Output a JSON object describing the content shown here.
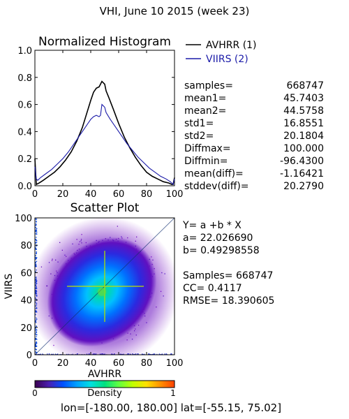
{
  "header": {
    "title": "VHI,  June 10 2015 (week 23)"
  },
  "footer": {
    "bounds": "lon=[-180.00, 180.00]  lat=[-55.15, 75.02]"
  },
  "chart_data": [
    {
      "type": "line",
      "title": "Normalized Histogram",
      "xlim": [
        0,
        100
      ],
      "ylim": [
        0,
        1
      ],
      "x_ticks": [
        "0",
        "20",
        "40",
        "60",
        "80",
        "100"
      ],
      "y_ticks": [
        "0.0",
        "0.2",
        "0.4",
        "0.6",
        "0.8",
        "1.0"
      ],
      "legend_position": "right",
      "series": [
        {
          "name": "AVHRR (1)",
          "color": "#000000",
          "points": [
            [
              0,
              0.2
            ],
            [
              1,
              0.01
            ],
            [
              3,
              0.02
            ],
            [
              6,
              0.04
            ],
            [
              10,
              0.07
            ],
            [
              14,
              0.1
            ],
            [
              18,
              0.14
            ],
            [
              22,
              0.19
            ],
            [
              26,
              0.25
            ],
            [
              30,
              0.33
            ],
            [
              34,
              0.43
            ],
            [
              37,
              0.53
            ],
            [
              40,
              0.63
            ],
            [
              42,
              0.69
            ],
            [
              44,
              0.72
            ],
            [
              46,
              0.73
            ],
            [
              48,
              0.77
            ],
            [
              50,
              0.75
            ],
            [
              51,
              0.7
            ],
            [
              53,
              0.65
            ],
            [
              56,
              0.57
            ],
            [
              60,
              0.46
            ],
            [
              64,
              0.36
            ],
            [
              68,
              0.28
            ],
            [
              72,
              0.21
            ],
            [
              76,
              0.15
            ],
            [
              80,
              0.1
            ],
            [
              84,
              0.07
            ],
            [
              88,
              0.05
            ],
            [
              92,
              0.03
            ],
            [
              96,
              0.02
            ],
            [
              98,
              0.01
            ],
            [
              99,
              0.01
            ],
            [
              100,
              0.06
            ]
          ]
        },
        {
          "name": "VIIRS (2)",
          "color": "#1a1aa8",
          "points": [
            [
              0,
              0.14
            ],
            [
              1,
              0.05
            ],
            [
              2,
              0.04
            ],
            [
              4,
              0.06
            ],
            [
              8,
              0.09
            ],
            [
              12,
              0.12
            ],
            [
              16,
              0.16
            ],
            [
              20,
              0.2
            ],
            [
              24,
              0.25
            ],
            [
              28,
              0.31
            ],
            [
              32,
              0.37
            ],
            [
              36,
              0.43
            ],
            [
              40,
              0.49
            ],
            [
              42,
              0.51
            ],
            [
              44,
              0.52
            ],
            [
              46,
              0.51
            ],
            [
              47,
              0.52
            ],
            [
              48,
              0.6
            ],
            [
              50,
              0.58
            ],
            [
              51,
              0.54
            ],
            [
              54,
              0.49
            ],
            [
              58,
              0.43
            ],
            [
              62,
              0.37
            ],
            [
              66,
              0.31
            ],
            [
              70,
              0.26
            ],
            [
              74,
              0.21
            ],
            [
              78,
              0.17
            ],
            [
              82,
              0.13
            ],
            [
              86,
              0.1
            ],
            [
              90,
              0.07
            ],
            [
              94,
              0.05
            ],
            [
              97,
              0.03
            ],
            [
              99,
              0.01
            ],
            [
              100,
              0.05
            ]
          ]
        }
      ]
    },
    {
      "type": "scatter",
      "title": "Scatter Plot",
      "xlabel": "AVHRR",
      "ylabel": "VIIRS",
      "xlim": [
        0,
        100
      ],
      "ylim": [
        0,
        100
      ],
      "x_ticks": [
        "0",
        "20",
        "40",
        "60",
        "80",
        "100"
      ],
      "y_ticks": [
        "0",
        "20",
        "40",
        "60",
        "80",
        "100"
      ],
      "note": "density-colored point cloud centred near (47, 45) with a 1:1 reference line",
      "colorbar": {
        "label": "Density",
        "min_label": "0",
        "max_label": "1",
        "colors": [
          "#3b0050",
          "#4a1fb0",
          "#0050ff",
          "#00a0ff",
          "#00e0e0",
          "#00e080",
          "#60ff40",
          "#c0ff00",
          "#ffe000",
          "#ff9000",
          "#ff4000"
        ]
      }
    }
  ],
  "stats": [
    {
      "label": "samples=",
      "value": "668747"
    },
    {
      "label": "mean1=",
      "value": "45.7403"
    },
    {
      "label": "mean2=",
      "value": "44.5758"
    },
    {
      "label": "std1=",
      "value": "16.8551"
    },
    {
      "label": "std2=",
      "value": "20.1804"
    },
    {
      "label": "Diffmax=",
      "value": "100.000"
    },
    {
      "label": "Diffmin=",
      "value": "-96.4300"
    },
    {
      "label": "mean(diff)=",
      "value": "-1.16421"
    },
    {
      "label": "stddev(diff)=",
      "value": "20.2790"
    }
  ],
  "regression": {
    "equation": "Y= a +b * X",
    "a": "a= 22.026690",
    "b": "b= 0.49298558",
    "samples": "Samples= 668747",
    "cc": "CC=  0.4117",
    "rmse": "RMSE= 18.390605"
  }
}
